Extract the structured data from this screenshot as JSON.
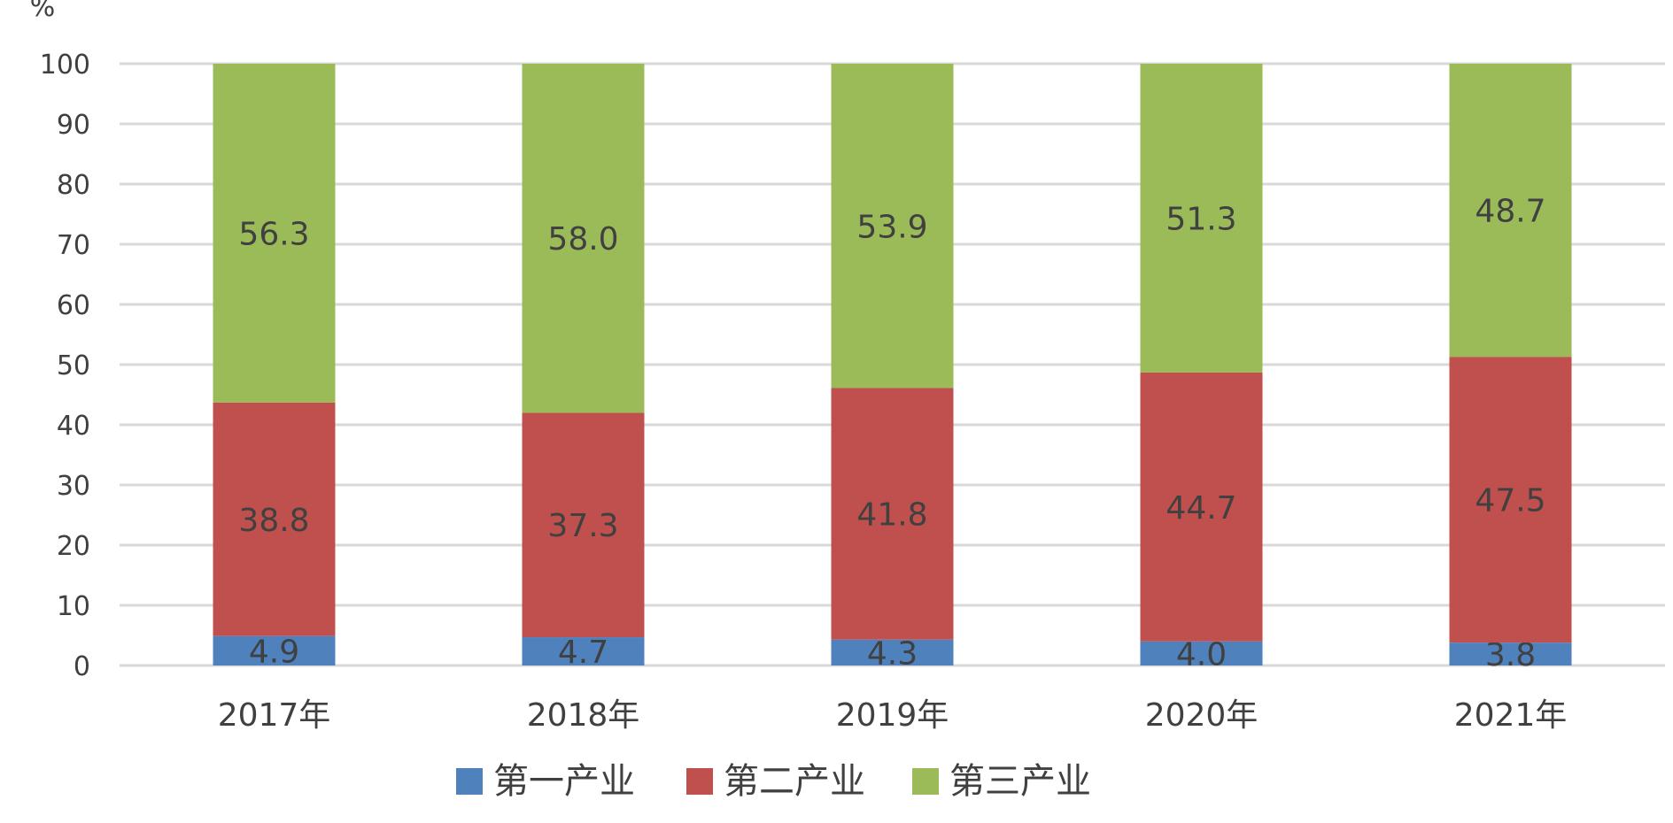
{
  "chart_data": {
    "type": "bar",
    "stacked": true,
    "unit_label": "%",
    "categories": [
      "2017年",
      "2018年",
      "2019年",
      "2020年",
      "2021年"
    ],
    "series": [
      {
        "name": "第一产业",
        "color": "#4F81BD",
        "values": [
          4.9,
          4.7,
          4.3,
          4.0,
          3.8
        ]
      },
      {
        "name": "第二产业",
        "color": "#C0504D",
        "values": [
          38.8,
          37.3,
          41.8,
          44.7,
          47.5
        ]
      },
      {
        "name": "第三产业",
        "color": "#9BBB59",
        "values": [
          56.3,
          58.0,
          53.9,
          51.3,
          48.7
        ]
      }
    ],
    "ylim": [
      0,
      100
    ],
    "yticks": [
      0,
      10,
      20,
      30,
      40,
      50,
      60,
      70,
      80,
      90,
      100
    ],
    "grid": true,
    "legend_position": "bottom"
  }
}
